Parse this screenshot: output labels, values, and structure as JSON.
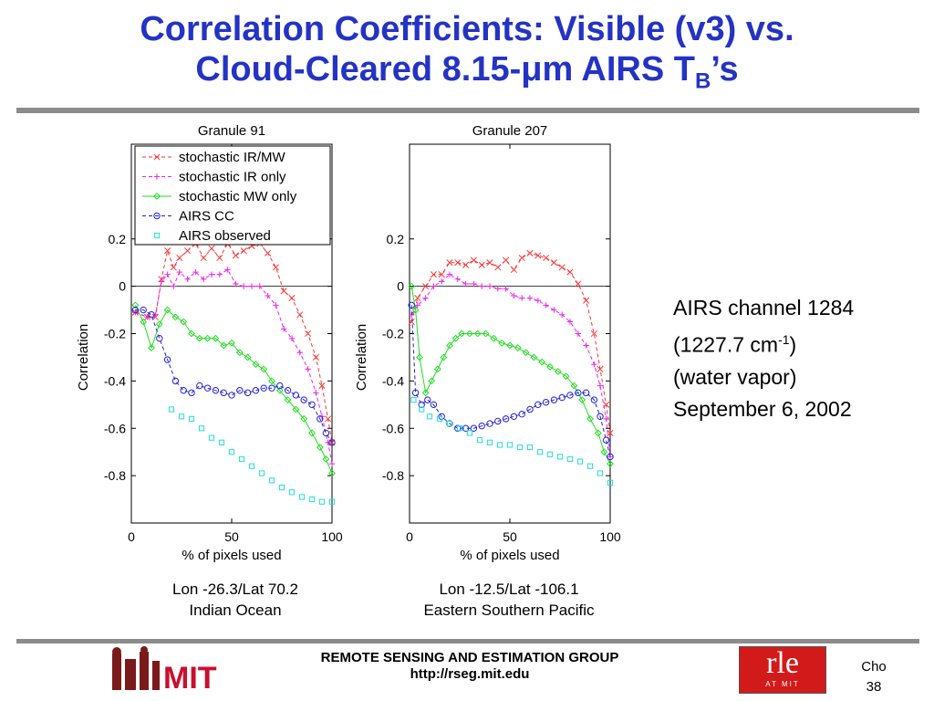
{
  "slide": {
    "title_line1": "Correlation Coefficients: Visible (v3) vs.",
    "title_line2_pre": "Cloud-Cleared 8.15-",
    "title_mu": "μ",
    "title_line2_post": "m AIRS T",
    "title_sub": "B",
    "title_end": "’s",
    "side": {
      "line1": "AIRS channel 1284",
      "line2_pre": "(1227.7 cm",
      "line2_sup": "-1",
      "line2_post": ")",
      "line3": "(water vapor)",
      "line4": "September 6, 2002"
    },
    "captions": [
      {
        "line1": "Lon -26.3/Lat 70.2",
        "line2": "Indian Ocean"
      },
      {
        "line1": "Lon -12.5/Lat -106.1",
        "line2": "Eastern Southern Pacific"
      }
    ],
    "footer": {
      "group": "REMOTE SENSING AND ESTIMATION GROUP",
      "url": "http://rseg.mit.edu",
      "author": "Cho",
      "page": "38",
      "mit_logo_text": "MIT",
      "rle_logo_text": "rle",
      "rle_logo_sub": "AT MIT"
    },
    "colors": {
      "title": "#2433c4",
      "rule": "#8c8c8c"
    }
  },
  "chart_data": [
    {
      "type": "line",
      "title": "Granule 91",
      "xlabel": "% of pixels used",
      "ylabel": "Correlation",
      "xlim": [
        0,
        100
      ],
      "ylim": [
        -1.0,
        0.6
      ],
      "xticks": [
        0,
        50,
        100
      ],
      "yticks": [
        0.2,
        0,
        -0.2,
        -0.4,
        -0.6,
        -0.8
      ],
      "ytick_labels": [
        "0.2",
        "0",
        "-0.2",
        "-0.4",
        "-0.6",
        "-0.8"
      ],
      "legend": "top-left",
      "series": [
        {
          "name": "stochastic IR/MW",
          "color": "#ff3333",
          "marker": "x",
          "dash": "dashed",
          "x": [
            2,
            8,
            12,
            15,
            18,
            21,
            24,
            28,
            32,
            36,
            40,
            44,
            48,
            52,
            56,
            60,
            64,
            68,
            72,
            76,
            80,
            84,
            88,
            92,
            95,
            98,
            100
          ],
          "y": [
            -0.11,
            -0.13,
            -0.13,
            0.03,
            0.15,
            0.08,
            0.12,
            0.15,
            0.18,
            0.12,
            0.16,
            0.12,
            0.18,
            0.13,
            0.15,
            0.17,
            0.18,
            0.14,
            0.08,
            -0.02,
            -0.05,
            -0.12,
            -0.2,
            -0.3,
            -0.42,
            -0.56,
            -0.66
          ]
        },
        {
          "name": "stochastic IR only",
          "color": "#ee22ee",
          "marker": "+",
          "dash": "dashed",
          "x": [
            2,
            8,
            12,
            15,
            18,
            21,
            24,
            28,
            32,
            36,
            40,
            44,
            48,
            52,
            56,
            60,
            64,
            68,
            72,
            76,
            80,
            84,
            88,
            92,
            95,
            98,
            100
          ],
          "y": [
            -0.11,
            -0.13,
            -0.12,
            0.02,
            0.05,
            0.0,
            0.06,
            0.03,
            0.06,
            0.03,
            0.05,
            0.05,
            0.07,
            0.01,
            0.0,
            0.0,
            0.0,
            -0.04,
            -0.08,
            -0.18,
            -0.22,
            -0.28,
            -0.35,
            -0.45,
            -0.55,
            -0.66,
            -0.75
          ]
        },
        {
          "name": "stochastic MW only",
          "color": "#22dd22",
          "marker": "diamond",
          "dash": "solid",
          "x": [
            2,
            6,
            10,
            14,
            18,
            22,
            26,
            30,
            34,
            38,
            42,
            46,
            50,
            54,
            58,
            62,
            66,
            70,
            74,
            78,
            82,
            86,
            90,
            94,
            97,
            100
          ],
          "y": [
            -0.08,
            -0.15,
            -0.26,
            -0.16,
            -0.1,
            -0.13,
            -0.15,
            -0.2,
            -0.22,
            -0.22,
            -0.22,
            -0.25,
            -0.24,
            -0.28,
            -0.3,
            -0.33,
            -0.35,
            -0.4,
            -0.44,
            -0.48,
            -0.52,
            -0.56,
            -0.62,
            -0.68,
            -0.73,
            -0.79
          ]
        },
        {
          "name": "AIRS CC",
          "color": "#2222dd",
          "marker": "o",
          "dash": "dashed",
          "x": [
            2,
            6,
            10,
            14,
            18,
            22,
            26,
            30,
            34,
            38,
            42,
            46,
            50,
            54,
            58,
            62,
            66,
            70,
            74,
            78,
            82,
            86,
            90,
            94,
            97,
            100
          ],
          "y": [
            -0.1,
            -0.1,
            -0.12,
            -0.22,
            -0.31,
            -0.4,
            -0.44,
            -0.45,
            -0.42,
            -0.43,
            -0.44,
            -0.45,
            -0.46,
            -0.44,
            -0.45,
            -0.44,
            -0.43,
            -0.43,
            -0.42,
            -0.44,
            -0.46,
            -0.48,
            -0.5,
            -0.56,
            -0.62,
            -0.66
          ]
        },
        {
          "name": "AIRS observed",
          "color": "#22dddd",
          "marker": "square",
          "dash": "none",
          "x": [
            20,
            25,
            30,
            35,
            40,
            45,
            50,
            55,
            60,
            65,
            70,
            75,
            80,
            85,
            90,
            95,
            100
          ],
          "y": [
            -0.52,
            -0.55,
            -0.56,
            -0.6,
            -0.64,
            -0.66,
            -0.7,
            -0.73,
            -0.76,
            -0.79,
            -0.82,
            -0.85,
            -0.87,
            -0.89,
            -0.9,
            -0.91,
            -0.91
          ]
        }
      ]
    },
    {
      "type": "line",
      "title": "Granule 207",
      "xlabel": "% of pixels used",
      "ylabel": "Correlation",
      "xlim": [
        0,
        100
      ],
      "ylim": [
        -1.0,
        0.6
      ],
      "xticks": [
        0,
        50,
        100
      ],
      "yticks": [
        0.2,
        0,
        -0.2,
        -0.4,
        -0.6,
        -0.8
      ],
      "ytick_labels": [
        "0.2",
        "0",
        "-0.2",
        "-0.4",
        "-0.6",
        "-0.8"
      ],
      "series": [
        {
          "name": "stochastic IR/MW",
          "color": "#ff3333",
          "marker": "x",
          "dash": "dashed",
          "x": [
            1,
            4,
            8,
            12,
            16,
            20,
            24,
            28,
            32,
            36,
            40,
            44,
            48,
            52,
            56,
            60,
            64,
            68,
            72,
            76,
            80,
            84,
            88,
            92,
            95,
            98,
            100
          ],
          "y": [
            -0.15,
            -0.05,
            0.0,
            0.05,
            0.05,
            0.1,
            0.1,
            0.09,
            0.11,
            0.09,
            0.1,
            0.08,
            0.11,
            0.07,
            0.12,
            0.14,
            0.13,
            0.12,
            0.1,
            0.08,
            0.06,
            0.01,
            -0.06,
            -0.2,
            -0.35,
            -0.5,
            -0.62
          ]
        },
        {
          "name": "stochastic IR only",
          "color": "#ee22ee",
          "marker": "+",
          "dash": "dashed",
          "x": [
            1,
            4,
            8,
            12,
            16,
            20,
            24,
            28,
            32,
            36,
            40,
            44,
            48,
            52,
            56,
            60,
            64,
            68,
            72,
            76,
            80,
            84,
            88,
            92,
            95,
            98,
            100
          ],
          "y": [
            -0.12,
            -0.08,
            -0.05,
            0.0,
            0.02,
            0.05,
            0.03,
            0.01,
            0.01,
            0.0,
            0.0,
            -0.01,
            -0.01,
            -0.04,
            -0.05,
            -0.05,
            -0.06,
            -0.08,
            -0.1,
            -0.12,
            -0.15,
            -0.2,
            -0.25,
            -0.33,
            -0.42,
            -0.56,
            -0.72
          ]
        },
        {
          "name": "stochastic MW only",
          "color": "#22dd22",
          "marker": "diamond",
          "dash": "solid",
          "x": [
            1,
            3,
            5,
            8,
            11,
            14,
            17,
            20,
            23,
            26,
            30,
            34,
            38,
            42,
            46,
            50,
            54,
            58,
            62,
            66,
            70,
            74,
            78,
            82,
            86,
            90,
            94,
            97,
            100
          ],
          "y": [
            0.0,
            -0.1,
            -0.3,
            -0.45,
            -0.4,
            -0.35,
            -0.3,
            -0.25,
            -0.22,
            -0.2,
            -0.2,
            -0.2,
            -0.2,
            -0.22,
            -0.24,
            -0.25,
            -0.26,
            -0.28,
            -0.3,
            -0.32,
            -0.34,
            -0.36,
            -0.38,
            -0.42,
            -0.48,
            -0.56,
            -0.62,
            -0.7,
            -0.75
          ]
        },
        {
          "name": "AIRS CC",
          "color": "#2222dd",
          "marker": "o",
          "dash": "dashed",
          "x": [
            1,
            3,
            6,
            9,
            12,
            16,
            20,
            24,
            28,
            32,
            36,
            40,
            44,
            48,
            52,
            56,
            60,
            64,
            68,
            72,
            76,
            80,
            84,
            88,
            92,
            95,
            98,
            100
          ],
          "y": [
            -0.08,
            -0.45,
            -0.5,
            -0.48,
            -0.5,
            -0.55,
            -0.58,
            -0.6,
            -0.6,
            -0.6,
            -0.59,
            -0.58,
            -0.57,
            -0.56,
            -0.55,
            -0.54,
            -0.52,
            -0.5,
            -0.49,
            -0.48,
            -0.47,
            -0.46,
            -0.45,
            -0.45,
            -0.48,
            -0.55,
            -0.65,
            -0.72
          ]
        },
        {
          "name": "AIRS observed",
          "color": "#22dddd",
          "marker": "square",
          "dash": "none",
          "x": [
            2,
            6,
            10,
            15,
            20,
            25,
            30,
            35,
            40,
            45,
            50,
            55,
            60,
            65,
            70,
            75,
            80,
            85,
            90,
            95,
            100
          ],
          "y": [
            -0.48,
            -0.52,
            -0.55,
            -0.56,
            -0.58,
            -0.6,
            -0.62,
            -0.65,
            -0.66,
            -0.67,
            -0.67,
            -0.68,
            -0.68,
            -0.7,
            -0.71,
            -0.72,
            -0.73,
            -0.74,
            -0.76,
            -0.79,
            -0.83
          ]
        }
      ]
    }
  ]
}
